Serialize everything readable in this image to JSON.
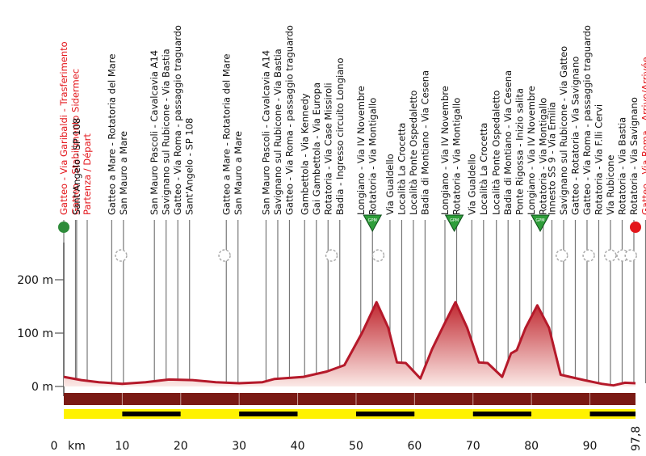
{
  "chart_data": {
    "type": "area",
    "title": "",
    "xlabel": "km",
    "ylabel": "",
    "xlim": [
      0,
      97.8
    ],
    "ylim": [
      0,
      200
    ],
    "x_ticks": [
      0,
      10,
      20,
      30,
      40,
      50,
      60,
      70,
      80,
      90
    ],
    "x_tick_labels": [
      "0",
      "10",
      "20",
      "30",
      "40",
      "50",
      "60",
      "70",
      "80",
      "90"
    ],
    "x_unit_label": "km",
    "y_ticks": [
      0,
      100,
      200
    ],
    "y_tick_labels": [
      "0 m",
      "100 m",
      "200 m"
    ],
    "finish_km_label": "97,8",
    "colors": {
      "profile_line": "#b5192a",
      "profile_fill_top": "#c0272f",
      "profile_fill_bottom": "#fbe9e6",
      "ground_band": "#7a1a14",
      "label_red": "#e3161b",
      "label_black": "#111111",
      "strip_yellow": "#fff200",
      "strip_black": "#000000",
      "start_dot": "#2e8b3a",
      "finish_dot": "#e3161b",
      "gpm_marker": "#2f9e3a"
    },
    "series": [
      {
        "values": [
          {
            "x": 0,
            "y": 18
          },
          {
            "x": 3,
            "y": 12
          },
          {
            "x": 6,
            "y": 8
          },
          {
            "x": 10,
            "y": 5
          },
          {
            "x": 14,
            "y": 8
          },
          {
            "x": 18,
            "y": 13
          },
          {
            "x": 22,
            "y": 12
          },
          {
            "x": 26,
            "y": 8
          },
          {
            "x": 30,
            "y": 6
          },
          {
            "x": 34,
            "y": 8
          },
          {
            "x": 36,
            "y": 14
          },
          {
            "x": 41,
            "y": 18
          },
          {
            "x": 45,
            "y": 28
          },
          {
            "x": 48,
            "y": 40
          },
          {
            "x": 51,
            "y": 100
          },
          {
            "x": 53.5,
            "y": 158
          },
          {
            "x": 55.5,
            "y": 110
          },
          {
            "x": 57,
            "y": 45
          },
          {
            "x": 58.5,
            "y": 44
          },
          {
            "x": 61,
            "y": 15
          },
          {
            "x": 63,
            "y": 70
          },
          {
            "x": 65,
            "y": 115
          },
          {
            "x": 67,
            "y": 158
          },
          {
            "x": 69,
            "y": 110
          },
          {
            "x": 71,
            "y": 45
          },
          {
            "x": 72.5,
            "y": 44
          },
          {
            "x": 75,
            "y": 18
          },
          {
            "x": 76.5,
            "y": 62
          },
          {
            "x": 77.5,
            "y": 68
          },
          {
            "x": 79,
            "y": 110
          },
          {
            "x": 81,
            "y": 152
          },
          {
            "x": 83,
            "y": 110
          },
          {
            "x": 85,
            "y": 22
          },
          {
            "x": 89,
            "y": 12
          },
          {
            "x": 92,
            "y": 5
          },
          {
            "x": 94,
            "y": 2
          },
          {
            "x": 96,
            "y": 7
          },
          {
            "x": 97.8,
            "y": 6
          }
        ]
      }
    ],
    "gpm": [
      {
        "km": 52.8,
        "label": "GPM"
      },
      {
        "km": 66.8,
        "label": "GPM"
      },
      {
        "km": 81.5,
        "label": "GPM"
      }
    ],
    "direction_markers_km": [
      9.8,
      27.5,
      45.8,
      53.8,
      85.2,
      89.8,
      93.5,
      95.6,
      97.0
    ],
    "strip_km": [
      10,
      20,
      30,
      40,
      50,
      60,
      70,
      80,
      90
    ],
    "waypoints": [
      {
        "km": 0,
        "lines": [
          "Gatteo - Via Garibaldi - Trasferimento",
          "Gatteo - Stabilimento Sidermec",
          "Partenza / Départ"
        ],
        "colors": [
          "#e3161b",
          "#e3161b",
          "#e3161b"
        ]
      },
      {
        "km": 2.2,
        "lines": [
          "Sant'Angelo - SP 108"
        ]
      },
      {
        "km": 8.2,
        "lines": [
          "Gatteo a Mare - Rotatoria del Mare",
          "San Mauro a Mare"
        ]
      },
      {
        "km": 15.5,
        "lines": [
          "San Mauro Pascoli - Cavalcavia A14",
          "Savignano sul Rubicone - Via Bastia",
          "Gatteo - Via Roma - passaggio traguardo",
          "Sant'Angelo - SP 108"
        ]
      },
      {
        "km": 27.8,
        "lines": [
          "Gatteo a Mare - Rotatoria del Mare",
          "San Mauro a Mare"
        ]
      },
      {
        "km": 34.6,
        "lines": [
          "San Mauro Pascoli - Cavalcavia A14",
          "Savignano sul Rubicone - Via Bastia",
          "Gatteo - Via Roma - passaggio traguardo"
        ]
      },
      {
        "km": 41.2,
        "lines": [
          "Gambettola - Via Kennedy",
          "Gai Gambettola - Via Europa",
          "Rotatoria - Via Case Missiroli",
          "Badia - Ingresso circuito Longiano"
        ]
      },
      {
        "km": 50.8,
        "lines": [
          "Longiano - Via IV Novembre",
          "Rotatoria - Via Montigallo"
        ]
      },
      {
        "km": 55.8,
        "lines": [
          "Via Gualdello",
          "Località La Crocetta"
        ]
      },
      {
        "km": 59.8,
        "lines": [
          "Località Ponte Ospedaletto",
          "Badia di Montiano - Via Cesena"
        ]
      },
      {
        "km": 65.2,
        "lines": [
          "Longiano - Via IV Novembre",
          "Rotatoria - Via Montigallo"
        ]
      },
      {
        "km": 69.8,
        "lines": [
          "Via Gualdello",
          "Località La Crocetta"
        ]
      },
      {
        "km": 74.0,
        "lines": [
          "Località Ponte Ospedaletto",
          "Badia di Montiano - Via Cesena",
          "Ponte Rigossa - Inizio salita",
          "Longiano - Via IV Novembre",
          "Rotatoria - Via Montigallo"
        ]
      },
      {
        "km": 83.5,
        "lines": [
          "Innesto SS 9 - Via Emilia",
          "Savignano sul Rubicone - Via Gatteo",
          "Gatteo - Rotatoria - Via Savignano",
          "Gatteo - Via Roma - passaggio traguardo",
          "Rotatoria - Via F.lli Cervi",
          "Via Rubicone",
          "Rotatoria - Via Bastia",
          "Rotatoria - Via Savignano",
          "Gatteo - Via Roma - Arrivo/Arrivée"
        ],
        "colors": [
          "#111111",
          "#111111",
          "#111111",
          "#111111",
          "#111111",
          "#111111",
          "#111111",
          "#111111",
          "#e3161b"
        ]
      }
    ]
  }
}
